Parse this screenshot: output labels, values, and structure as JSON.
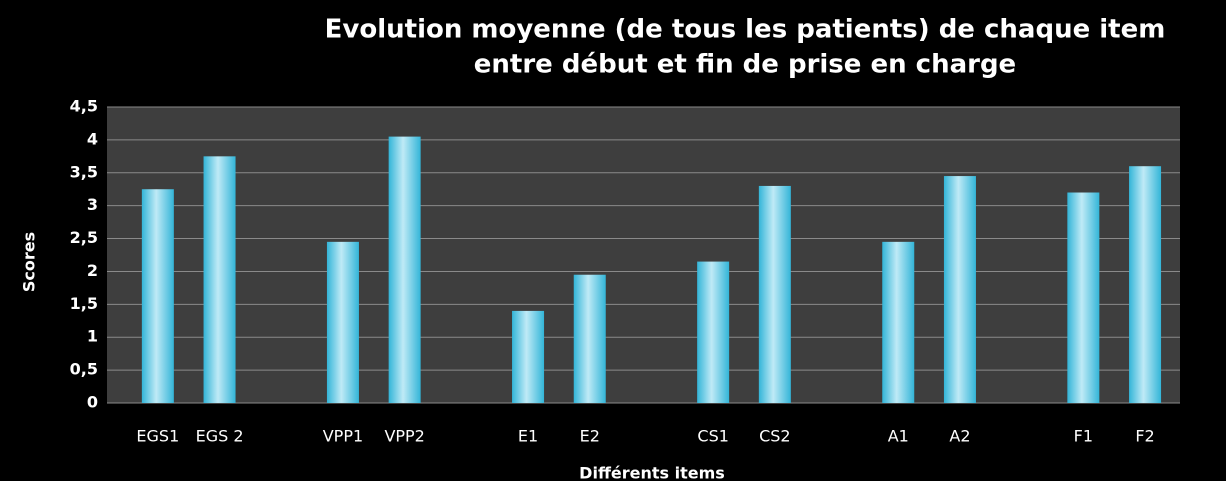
{
  "chart_data": {
    "type": "bar",
    "title": [
      "Evolution moyenne (de tous les patients) de chaque item",
      "entre début et fin de prise en charge"
    ],
    "xlabel": "Différents items",
    "ylabel": "Scores",
    "categories": [
      "EGS1",
      "EGS 2",
      null,
      "VPP1",
      "VPP2",
      null,
      "E1",
      "E2",
      null,
      "CS1",
      "CS2",
      null,
      "A1",
      "A2",
      null,
      "F1",
      "F2"
    ],
    "values": [
      3.25,
      3.75,
      null,
      2.45,
      4.05,
      null,
      1.4,
      1.95,
      null,
      2.15,
      3.3,
      null,
      2.45,
      3.45,
      null,
      3.2,
      3.6
    ],
    "color": "#33b5d8",
    "ylim": [
      0,
      4.5
    ],
    "yticks": [
      0,
      {
        "value": 0.5,
        "label": "0,5"
      },
      1,
      {
        "value": 1.5,
        "label": "1,5"
      },
      2,
      {
        "value": 2.5,
        "label": "2,5"
      },
      3,
      {
        "value": 3.5,
        "label": "3,5"
      },
      4,
      {
        "value": 4.5,
        "label": "4,5"
      }
    ],
    "grid": true
  }
}
